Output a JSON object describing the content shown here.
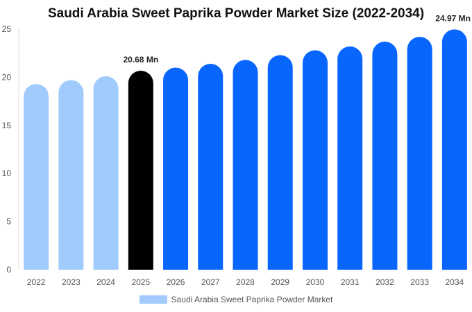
{
  "chart_data": {
    "type": "bar",
    "title": "Saudi Arabia Sweet Paprika Powder Market Size (2022-2034)",
    "xlabel": "",
    "ylabel": "",
    "categories": [
      "2022",
      "2023",
      "2024",
      "2025",
      "2026",
      "2027",
      "2028",
      "2029",
      "2030",
      "2031",
      "2032",
      "2033",
      "2034"
    ],
    "series": [
      {
        "name": "Saudi Arabia Sweet Paprika Powder Market",
        "values": [
          19.3,
          19.7,
          20.1,
          20.68,
          21.0,
          21.4,
          21.8,
          22.3,
          22.8,
          23.2,
          23.7,
          24.2,
          24.97
        ]
      }
    ],
    "data_labels": [
      {
        "category": "2025",
        "text": "20.68 Mn"
      },
      {
        "category": "2034",
        "text": "24.97 Mn"
      }
    ],
    "ylim": [
      0,
      25
    ],
    "yticks": [
      0,
      5,
      10,
      15,
      20,
      25
    ],
    "grid": false,
    "legend_position": "bottom",
    "bar_colors": {
      "historical": "#a0cbfc",
      "base_year": "#000000",
      "forecast": "#0866ff"
    },
    "historical_categories": [
      "2022",
      "2023",
      "2024"
    ],
    "base_year_category": "2025"
  }
}
